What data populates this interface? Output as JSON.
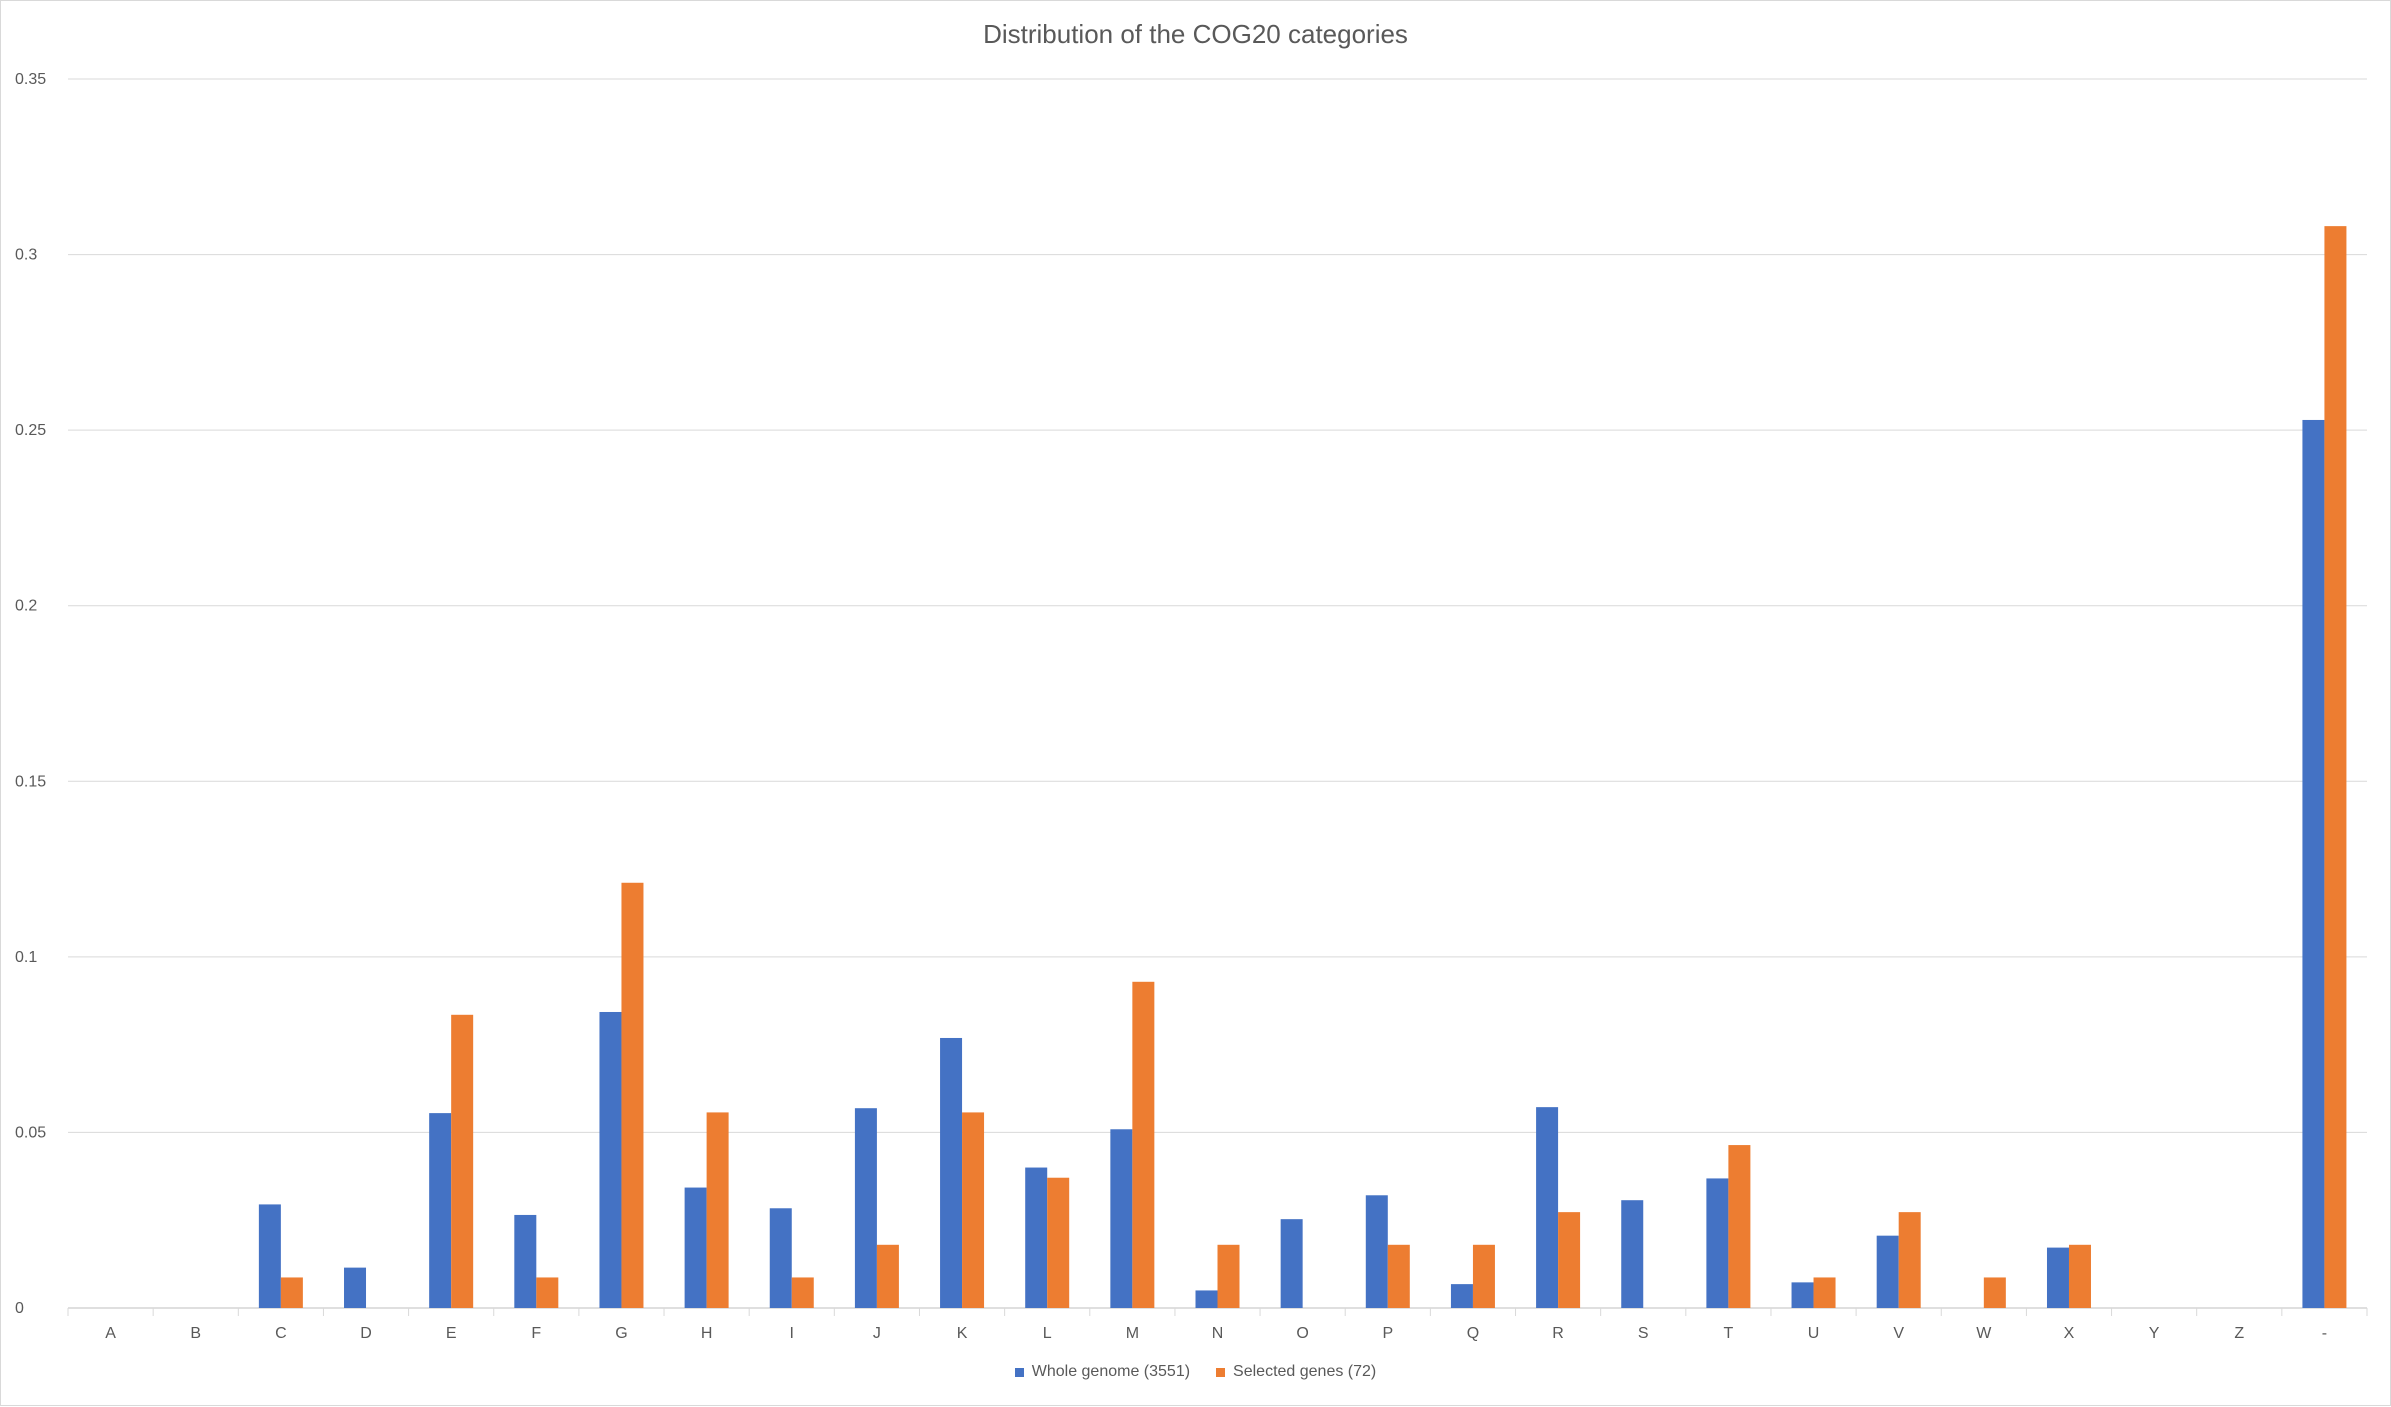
{
  "chart_data": {
    "type": "bar",
    "title": "Distribution of the COG20 categories",
    "xlabel": "",
    "ylabel": "",
    "ylim": [
      0,
      0.35
    ],
    "yticks": [
      "0",
      "0.05",
      "0.1",
      "0.15",
      "0.2",
      "0.25",
      "0.3",
      "0.35"
    ],
    "grid": true,
    "legend_position": "bottom",
    "categories": [
      "A",
      "B",
      "C",
      "D",
      "E",
      "F",
      "G",
      "H",
      "I",
      "J",
      "K",
      "L",
      "M",
      "N",
      "O",
      "P",
      "Q",
      "R",
      "S",
      "T",
      "U",
      "V",
      "W",
      "X",
      "Y",
      "Z",
      "-"
    ],
    "series": [
      {
        "name": "Whole genome (3551)",
        "color": "#4472C4",
        "values": [
          0,
          0,
          0.0295,
          0.0115,
          0.0555,
          0.0265,
          0.0843,
          0.0343,
          0.0284,
          0.0569,
          0.0769,
          0.04,
          0.0509,
          0.005,
          0.0253,
          0.0321,
          0.0068,
          0.0572,
          0.0307,
          0.0369,
          0.0073,
          0.0206,
          0,
          0.0172,
          0,
          0,
          0.2529
        ]
      },
      {
        "name": "Selected genes (72)",
        "color": "#ED7D31",
        "values": [
          0,
          0,
          0.0087,
          0,
          0.0835,
          0.0087,
          0.1211,
          0.0557,
          0.0087,
          0.018,
          0.0557,
          0.0371,
          0.0929,
          0.018,
          0,
          0.018,
          0.018,
          0.0273,
          0,
          0.0464,
          0.0087,
          0.0273,
          0.0087,
          0.018,
          0,
          0,
          0.3081
        ]
      }
    ]
  }
}
